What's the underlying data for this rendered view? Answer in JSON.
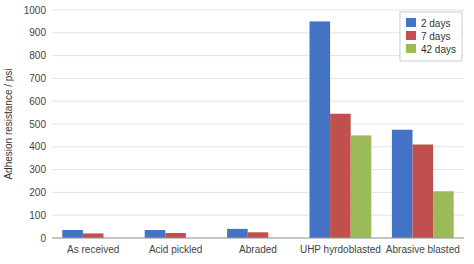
{
  "chart_data": {
    "type": "bar",
    "categories": [
      "As received",
      "Acid pickled",
      "Abraded",
      "UHP hyrdoblasted",
      "Abrasive blasted"
    ],
    "series": [
      {
        "name": "2 days",
        "color": "#4472C4",
        "values": [
          35,
          35,
          40,
          950,
          475
        ]
      },
      {
        "name": "7 days",
        "color": "#C0504D",
        "values": [
          20,
          22,
          25,
          545,
          410
        ]
      },
      {
        "name": "42 days",
        "color": "#9BBB59",
        "values": [
          0,
          0,
          0,
          450,
          205
        ]
      }
    ],
    "ylabel": "Adhesion resistance / psi",
    "ylim": [
      0,
      1000
    ],
    "yticks": [
      0,
      100,
      200,
      300,
      400,
      500,
      600,
      700,
      800,
      900,
      1000
    ],
    "grid": true,
    "legend": "upper right"
  }
}
